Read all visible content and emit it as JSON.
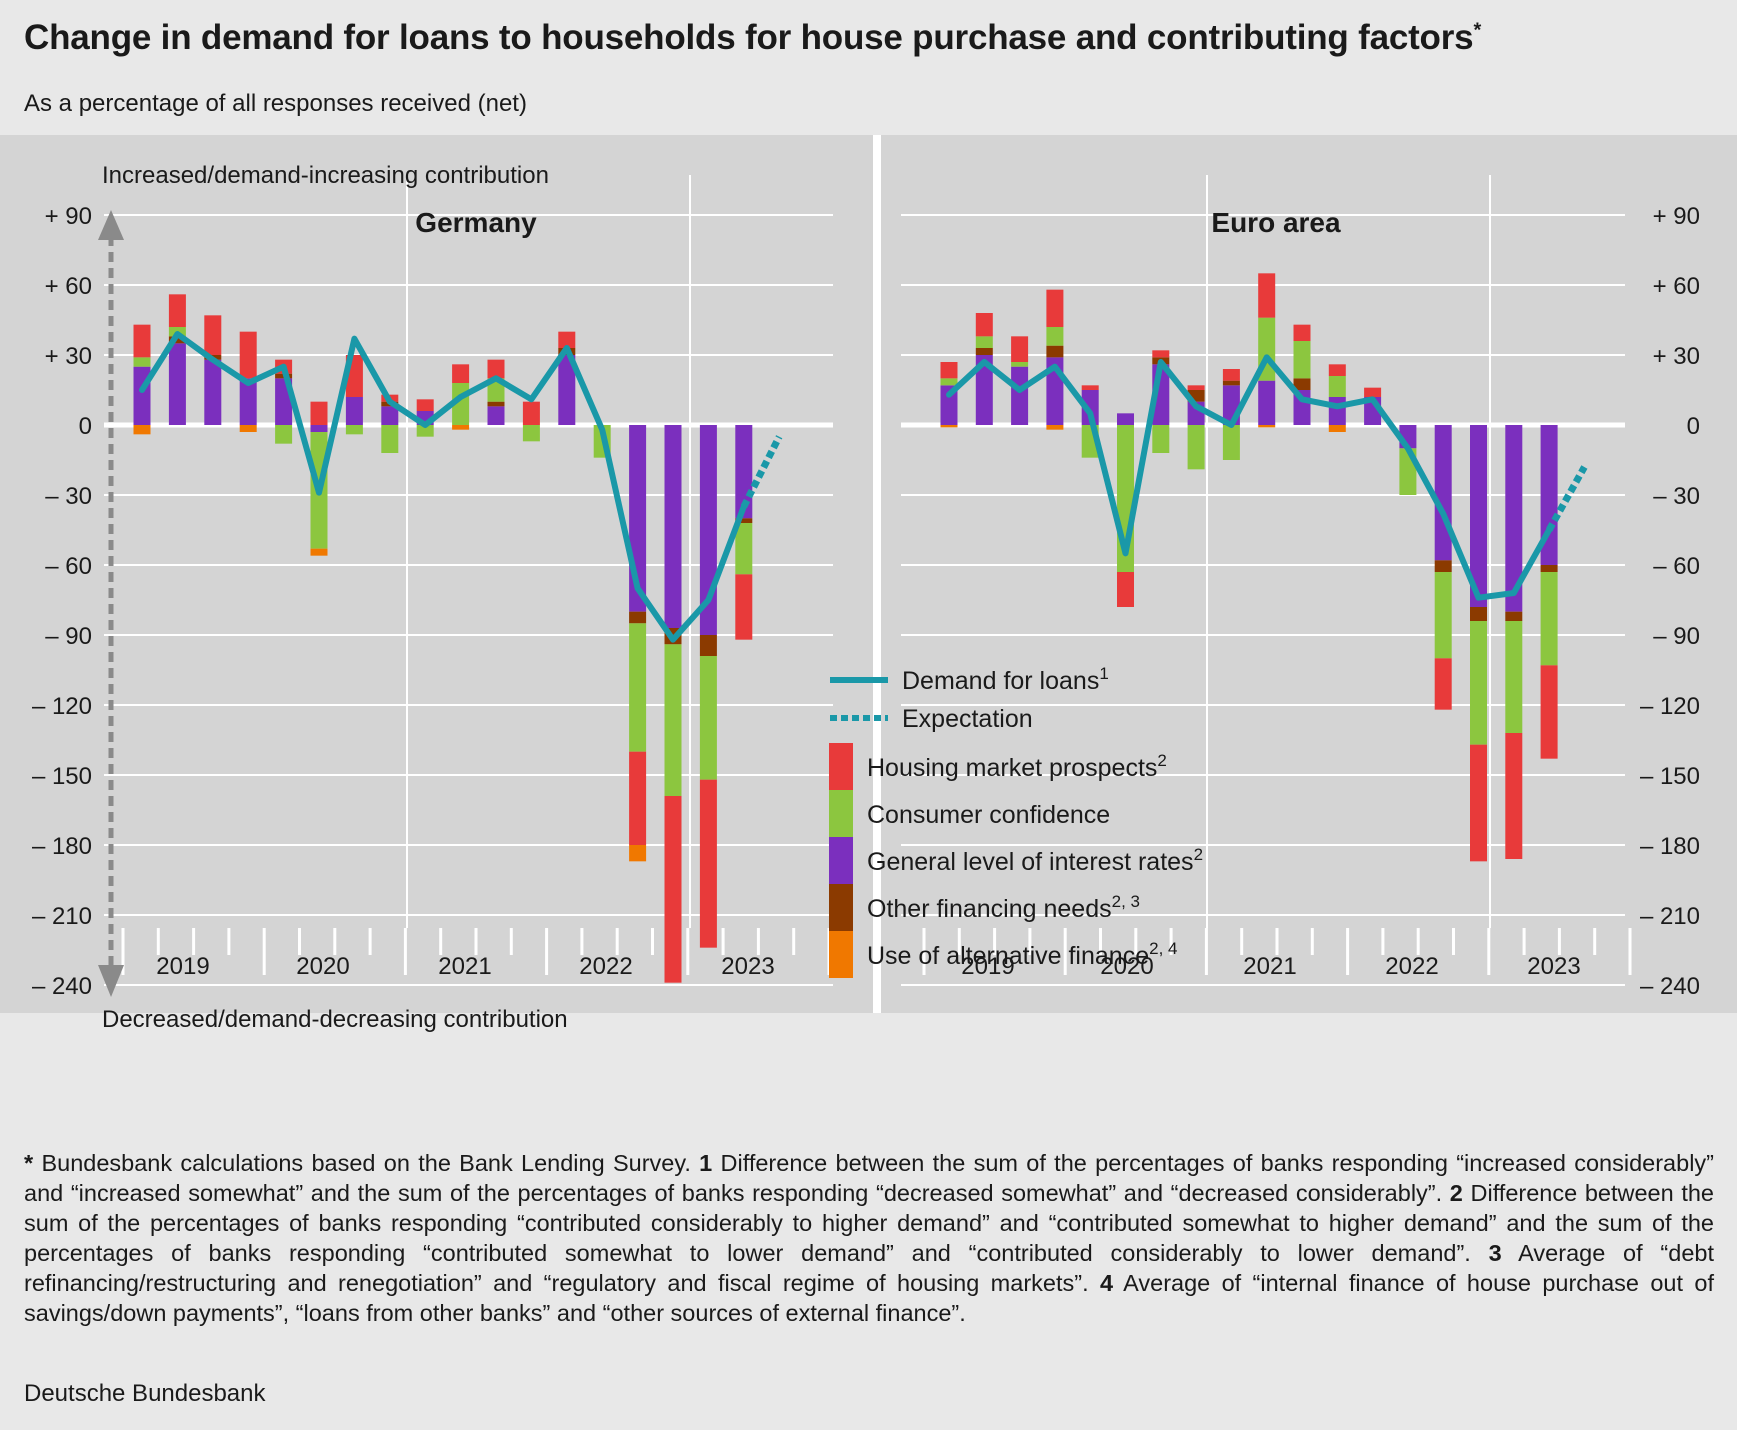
{
  "title": "Change in demand for loans to households for house purchase and contributing factors",
  "title_mark": "*",
  "subtitle": "As a percentage of all responses received (net)",
  "chart_data": [
    {
      "type": "bar",
      "panel": "Germany",
      "title": "Germany",
      "top_label": "Increased/demand-increasing contribution",
      "bottom_label": "Decreased/demand-decreasing contribution",
      "ylim": [
        -240,
        90
      ],
      "yticks": [
        90,
        60,
        30,
        0,
        -30,
        -60,
        -90,
        -120,
        -150,
        -180,
        -210,
        -240
      ],
      "ytick_labels": [
        "+ 90",
        "+ 60",
        "+ 30",
        "0",
        "– 30",
        "– 60",
        "– 90",
        "– 120",
        "– 150",
        "– 180",
        "– 210",
        "– 240"
      ],
      "x_year_labels": [
        "2019",
        "2020",
        "2021",
        "2022",
        "2023"
      ],
      "stacked_series": [
        {
          "name": "General level of interest rates",
          "color": "#7b2fbe",
          "values": [
            25,
            35,
            28,
            20,
            20,
            -3,
            12,
            8,
            6,
            0,
            8,
            0,
            30,
            0,
            -80,
            -87,
            -90,
            -40
          ]
        },
        {
          "name": "Other financing needs",
          "color": "#8b3a00",
          "values": [
            0,
            3,
            2,
            0,
            2,
            0,
            0,
            2,
            0,
            0,
            2,
            0,
            3,
            0,
            -5,
            -7,
            -9,
            -2
          ]
        },
        {
          "name": "Consumer confidence",
          "color": "#8cc63f",
          "values": [
            4,
            4,
            0,
            0,
            -8,
            -50,
            -4,
            -12,
            -5,
            18,
            10,
            -7,
            0,
            -14,
            -55,
            -65,
            -53,
            -22
          ]
        },
        {
          "name": "Housing market prospects",
          "color": "#e83a3a",
          "values": [
            14,
            14,
            17,
            20,
            6,
            10,
            18,
            3,
            5,
            8,
            8,
            10,
            7,
            0,
            -40,
            -80,
            -72,
            -28
          ]
        },
        {
          "name": "Use of alternative finance",
          "color": "#f07800",
          "values": [
            -4,
            0,
            0,
            -3,
            0,
            -3,
            0,
            0,
            0,
            -2,
            0,
            0,
            0,
            0,
            -7,
            0,
            0,
            0
          ]
        }
      ],
      "demand_for_loans": [
        15,
        39,
        28,
        18,
        25,
        -29,
        37,
        10,
        0,
        12,
        20,
        11,
        33,
        -2,
        -70,
        -92,
        -75,
        -35
      ],
      "expectation": [
        -35,
        -5
      ]
    },
    {
      "type": "bar",
      "panel": "Euro area",
      "title": "Euro area",
      "ylim": [
        -240,
        90
      ],
      "yticks": [
        90,
        60,
        30,
        0,
        -30,
        -60,
        -90,
        -120,
        -150,
        -180,
        -210,
        -240
      ],
      "ytick_labels": [
        "+ 90",
        "+ 60",
        "+ 30",
        "0",
        "– 30",
        "– 60",
        "– 90",
        "– 120",
        "– 150",
        "– 180",
        "– 210",
        "– 240"
      ],
      "x_year_labels": [
        "2019",
        "2020",
        "2021",
        "2022",
        "2023"
      ],
      "stacked_series": [
        {
          "name": "General level of interest rates",
          "color": "#7b2fbe",
          "values": [
            17,
            30,
            25,
            29,
            15,
            5,
            26,
            10,
            17,
            19,
            15,
            12,
            12,
            -10,
            -58,
            -78,
            -80,
            -60
          ]
        },
        {
          "name": "Other financing needs",
          "color": "#8b3a00",
          "values": [
            0,
            3,
            0,
            5,
            0,
            0,
            3,
            5,
            2,
            0,
            5,
            0,
            0,
            0,
            -5,
            -6,
            -4,
            -3
          ]
        },
        {
          "name": "Consumer confidence",
          "color": "#8cc63f",
          "values": [
            3,
            5,
            2,
            8,
            -14,
            -63,
            -12,
            -19,
            -15,
            27,
            16,
            9,
            0,
            -20,
            -37,
            -53,
            -48,
            -40
          ]
        },
        {
          "name": "Housing market prospects",
          "color": "#e83a3a",
          "values": [
            7,
            10,
            11,
            16,
            2,
            -15,
            3,
            2,
            5,
            19,
            7,
            5,
            4,
            0,
            -22,
            -50,
            -54,
            -40
          ]
        },
        {
          "name": "Use of alternative finance",
          "color": "#f07800",
          "values": [
            -1,
            0,
            0,
            -2,
            0,
            0,
            0,
            0,
            0,
            -1,
            0,
            -3,
            0,
            0,
            0,
            0,
            0,
            0
          ]
        }
      ],
      "demand_for_loans": [
        13,
        27,
        15,
        25,
        5,
        -55,
        27,
        8,
        0,
        29,
        11,
        8,
        11,
        -10,
        -38,
        -74,
        -72,
        -45
      ],
      "expectation": [
        -45,
        -18
      ]
    }
  ],
  "legend": {
    "line_demand": "Demand for loans",
    "line_demand_sup": "1",
    "line_expectation": "Expectation",
    "items": [
      {
        "label": "Housing market prospects",
        "sup": "2",
        "color": "#e83a3a"
      },
      {
        "label": "Consumer confidence",
        "sup": "",
        "color": "#8cc63f"
      },
      {
        "label": "General level of interest rates",
        "sup": "2",
        "color": "#7b2fbe"
      },
      {
        "label": "Other financing needs",
        "sup": "2, 3",
        "color": "#8b3a00"
      },
      {
        "label": "Use of alternative finance",
        "sup": "2, 4",
        "color": "#f07800"
      }
    ]
  },
  "colors": {
    "line": "#1a98a8",
    "panel_bg": "#d4d4d4",
    "page_bg": "#e8e8e8",
    "arrow": "#8a8a8a"
  },
  "footnotes": {
    "f0_mark": "*",
    "f0": " Bundesbank calculations based on the Bank Lending Survey. ",
    "f1_mark": "1",
    "f1": " Difference between the sum of the percentages of banks responding “increased considerably” and “increased somewhat” and the sum of the percentages of banks responding “decreased somewhat” and “decreased considerably”. ",
    "f2_mark": "2",
    "f2": " Difference between the sum of the percentages of banks responding “contributed considerably to higher demand” and “contributed somewhat to higher demand” and the sum of the percentages of banks responding “contributed somewhat to lower demand” and “contributed considerably to lower demand”. ",
    "f3_mark": "3",
    "f3": " Average of “debt refinancing/restructuring and renegotiation” and “regulatory and fiscal regime of housing markets”. ",
    "f4_mark": "4",
    "f4": " Average of “internal finance of house purchase out of savings/down payments”, “loans from other banks” and “other sources of external finance”."
  },
  "source": "Deutsche Bundesbank"
}
